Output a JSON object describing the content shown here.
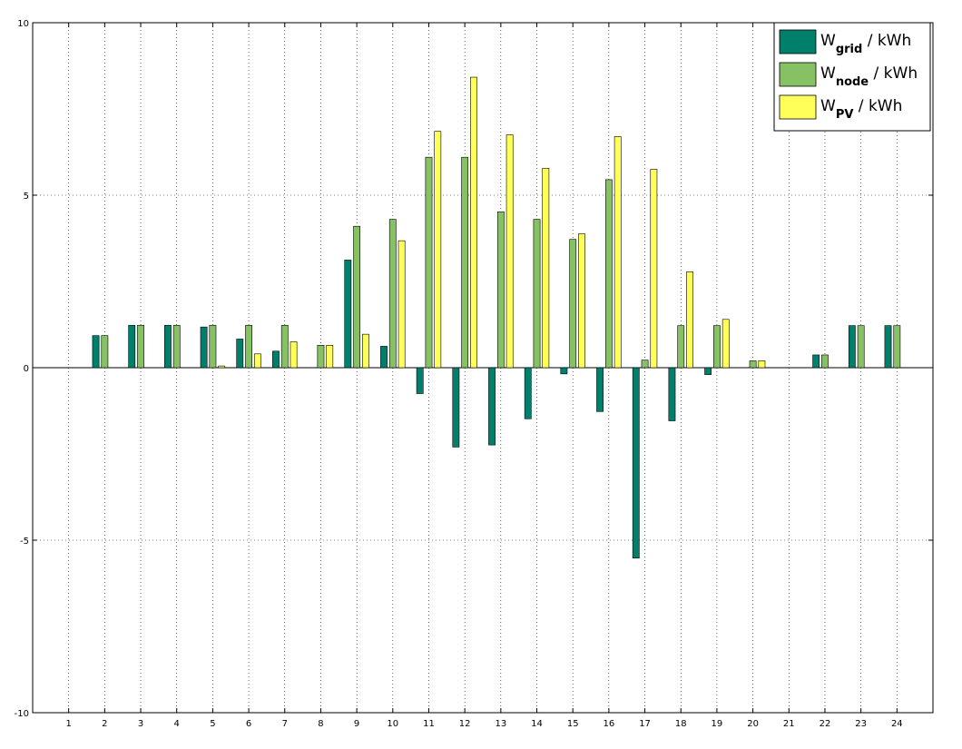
{
  "chart_data": {
    "type": "bar",
    "categories": [
      "1",
      "2",
      "3",
      "4",
      "5",
      "6",
      "7",
      "8",
      "9",
      "10",
      "11",
      "12",
      "13",
      "14",
      "15",
      "16",
      "17",
      "18",
      "19",
      "20",
      "21",
      "22",
      "23",
      "24"
    ],
    "ylim": [
      -10,
      10
    ],
    "yticks": [
      "-10",
      "-5",
      "0",
      "5",
      "10"
    ],
    "grid": true,
    "legend_position": "top-right",
    "series": [
      {
        "name": "W",
        "name_sub": "grid",
        "name_suffix": " / kWh",
        "color": "#00806a",
        "values": [
          0,
          0.93,
          1.23,
          1.23,
          1.18,
          0.83,
          0.48,
          0,
          3.12,
          0.62,
          -0.75,
          -2.3,
          -2.24,
          -1.48,
          -0.18,
          -1.27,
          -5.52,
          -1.54,
          -0.2,
          0,
          0,
          0.37,
          1.22,
          1.22
        ]
      },
      {
        "name": "W",
        "name_sub": "node",
        "name_suffix": " / kWh",
        "color": "#86c164",
        "values": [
          0,
          0.93,
          1.23,
          1.23,
          1.23,
          1.23,
          1.23,
          0.65,
          4.1,
          4.3,
          6.1,
          6.1,
          4.52,
          4.3,
          3.72,
          5.45,
          0.22,
          1.22,
          1.22,
          0.2,
          0,
          0.37,
          1.22,
          1.22
        ]
      },
      {
        "name": "W",
        "name_sub": "PV",
        "name_suffix": " / kWh",
        "color": "#ffff5a",
        "values": [
          0,
          0,
          0,
          0,
          0.05,
          0.4,
          0.75,
          0.65,
          0.97,
          3.68,
          6.85,
          8.42,
          6.75,
          5.78,
          3.88,
          6.7,
          5.75,
          2.78,
          1.4,
          0.2,
          0,
          0,
          0,
          0
        ]
      }
    ]
  }
}
